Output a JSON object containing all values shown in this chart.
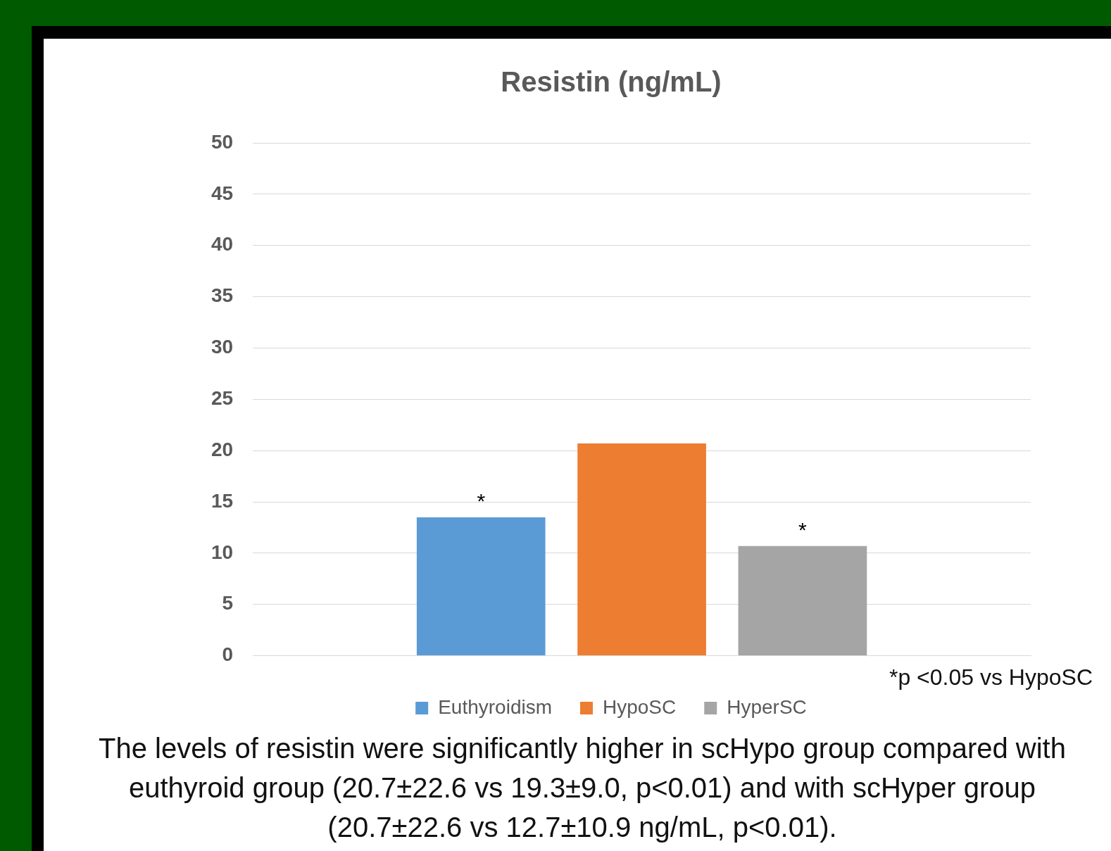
{
  "chart_data": {
    "type": "bar",
    "title": "Resistin (ng/mL)",
    "categories": [
      null
    ],
    "series": [
      {
        "name": "Euthyroidism",
        "color": "#5b9bd5",
        "values": [
          13.5
        ],
        "value_labels": [
          "*"
        ]
      },
      {
        "name": "HypoSC",
        "color": "#ed7d31",
        "values": [
          20.7
        ]
      },
      {
        "name": "HyperSC",
        "color": "#a5a5a5",
        "values": [
          10.7
        ],
        "value_labels": [
          "*"
        ]
      }
    ],
    "ylim": [
      0,
      50
    ],
    "yticks": [
      0,
      5,
      10,
      15,
      20,
      25,
      30,
      35,
      40,
      45,
      50
    ],
    "grid": "y",
    "legend": "bottom",
    "annotations": [
      "*p <0.05 vs HypoSC",
      "The levels of resistin were significantly higher in scHypo group compared with euthyroid group (20.7±22.6 vs 19.3±9.0, p<0.01) and with scHyper group (20.7±22.6 vs 12.7±10.9 ng/mL, p<0.01)."
    ]
  }
}
